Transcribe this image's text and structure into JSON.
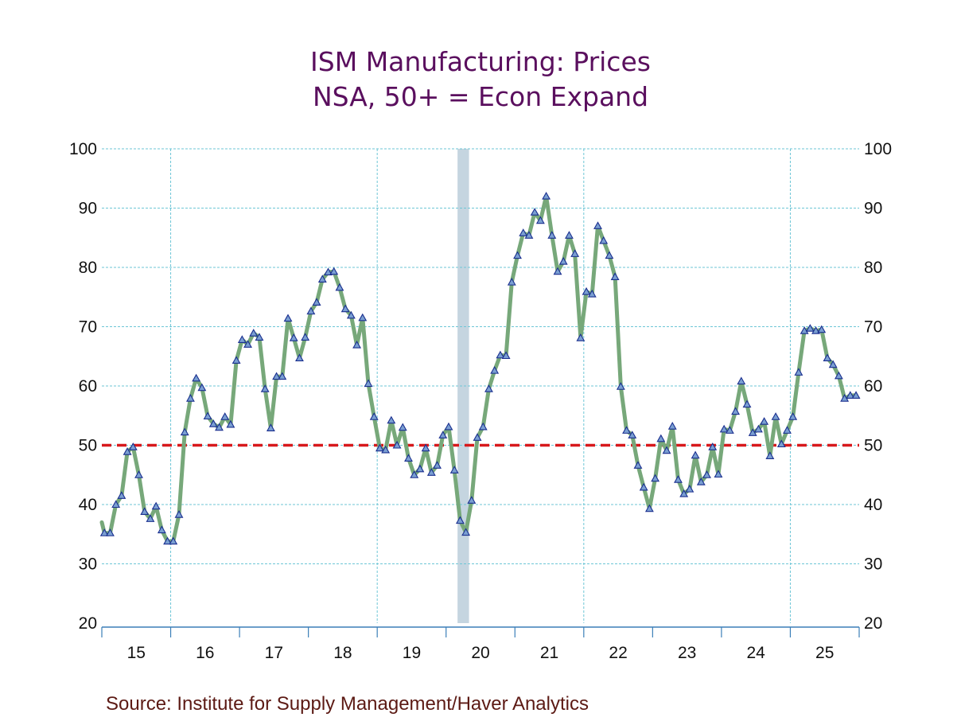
{
  "chart_data": {
    "type": "line",
    "title": "ISM Manufacturing: Prices",
    "subtitle": "NSA, 50+ = Econ Expand",
    "source": "Source:  Institute for Supply Management/Haver Analytics",
    "xlabel": "",
    "ylabel": "",
    "ylim": [
      20,
      100
    ],
    "yticks": [
      20,
      30,
      40,
      50,
      60,
      70,
      80,
      90,
      100
    ],
    "ytick_labels": [
      "20",
      "30",
      "40",
      "50",
      "60",
      "70",
      "80",
      "90",
      "100"
    ],
    "xlim": [
      "2015-01",
      "2025-12"
    ],
    "xtick_labels": [
      "15",
      "16",
      "17",
      "18",
      "19",
      "20",
      "21",
      "22",
      "23",
      "24",
      "25"
    ],
    "grid": true,
    "reference_line": {
      "value": 50,
      "color": "#d7191c",
      "style": "dashed"
    },
    "recession_shading": [
      {
        "start": "2020-03",
        "end": "2020-04",
        "color": "#c5d5e0"
      }
    ],
    "series_color": "#77a87a",
    "marker_color": "#7a9fd1",
    "series": [
      {
        "name": "ISM Manufacturing: Prices (NSA)",
        "start": "2015-01",
        "frequency": "monthly",
        "prev_value": 37.0,
        "values": [
          35.2,
          35.2,
          40.0,
          41.5,
          48.9,
          49.7,
          45.0,
          38.8,
          37.6,
          39.7,
          35.7,
          33.8,
          33.8,
          38.3,
          52.2,
          57.9,
          61.3,
          59.7,
          54.9,
          53.6,
          53.0,
          54.8,
          53.5,
          64.3,
          67.8,
          67.0,
          68.9,
          68.2,
          59.5,
          52.9,
          61.6,
          61.6,
          71.4,
          68.1,
          64.7,
          68.2,
          72.6,
          74.1,
          78.0,
          79.2,
          79.3,
          76.6,
          73.0,
          71.9,
          66.9,
          71.5,
          60.4,
          54.8,
          49.5,
          49.2,
          54.2,
          50.0,
          53.0,
          47.8,
          45.0,
          46.0,
          49.5,
          45.4,
          46.6,
          51.7,
          53.1,
          45.8,
          37.3,
          35.3,
          40.7,
          51.3,
          53.1,
          59.5,
          62.6,
          65.2,
          65.1,
          77.5,
          82.0,
          85.8,
          85.4,
          89.3,
          87.9,
          92.0,
          85.4,
          79.3,
          81.0,
          85.4,
          82.3,
          68.1,
          75.9,
          75.5,
          87.0,
          84.5,
          82.0,
          78.4,
          59.9,
          52.5,
          51.7,
          46.6,
          42.9,
          39.3,
          44.4,
          51.1,
          49.1,
          53.2,
          44.2,
          41.8,
          42.6,
          48.3,
          43.8,
          45.0,
          49.7,
          45.1,
          52.7,
          52.5,
          55.7,
          60.8,
          56.9,
          52.1,
          52.7,
          54.0,
          48.2,
          54.8,
          50.2,
          52.5,
          54.8,
          62.3,
          69.3,
          69.7,
          69.3,
          69.5,
          64.7,
          63.6,
          61.7,
          57.9,
          58.4,
          58.4
        ]
      }
    ]
  }
}
